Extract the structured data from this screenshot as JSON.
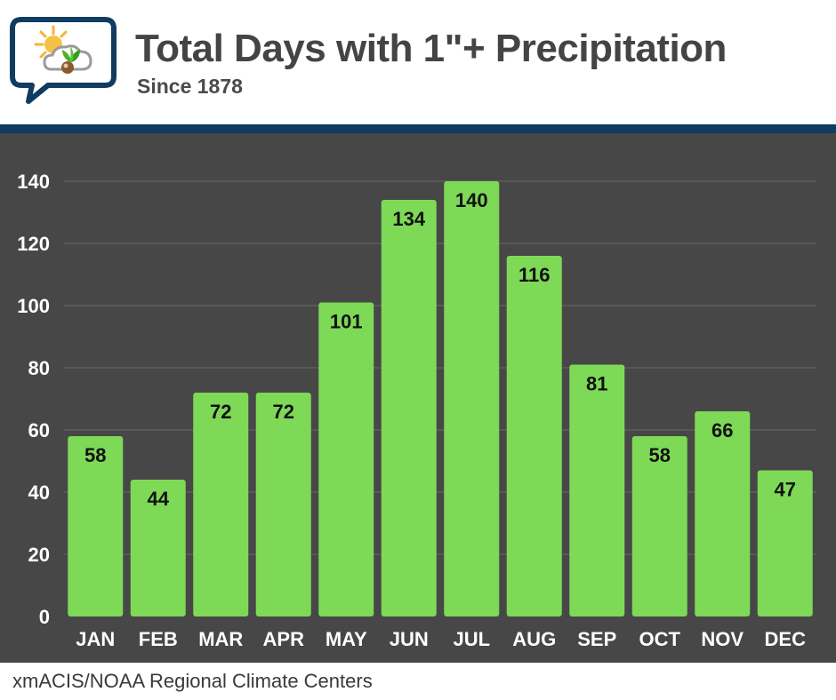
{
  "header": {
    "logo_icon": "weather-sun-cloud-plant-icon",
    "title": "Total Days with 1\"+ Precipitation",
    "subtitle": "Since 1878"
  },
  "footer": {
    "source": "xmACIS/NOAA Regional Climate Centers"
  },
  "colors": {
    "bar": "#7ed957",
    "background": "#474747",
    "divider": "#0f3c60",
    "label_text": "#111111",
    "axis_text": "#ffffff",
    "grid": "#6a6a6a"
  },
  "chart_data": {
    "type": "bar",
    "title": "Total Days with 1\"+ Precipitation",
    "subtitle": "Since 1878",
    "xlabel": "",
    "ylabel": "",
    "categories": [
      "JAN",
      "FEB",
      "MAR",
      "APR",
      "MAY",
      "JUN",
      "JUL",
      "AUG",
      "SEP",
      "OCT",
      "NOV",
      "DEC"
    ],
    "values": [
      58,
      44,
      72,
      72,
      101,
      134,
      140,
      116,
      81,
      58,
      66,
      47
    ],
    "ylim": [
      0,
      140
    ],
    "yticks": [
      0,
      20,
      40,
      60,
      80,
      100,
      120,
      140
    ],
    "grid": true,
    "legend": "none",
    "data_labels": true
  }
}
